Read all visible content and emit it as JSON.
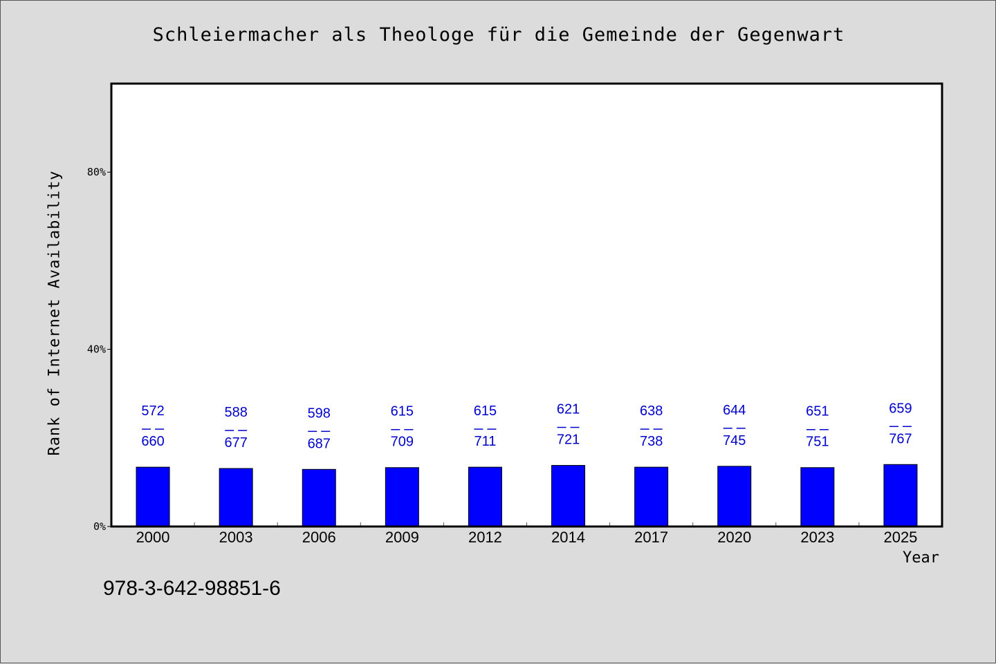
{
  "chart_data": {
    "type": "bar",
    "title": "Schleiermacher als Theologe für die Gemeinde der Gegenwart",
    "xlabel": "Year",
    "ylabel": "Rank of Internet Availability",
    "categories": [
      "2000",
      "2003",
      "2006",
      "2009",
      "2012",
      "2014",
      "2017",
      "2020",
      "2023",
      "2025"
    ],
    "values": [
      13.4,
      13.1,
      12.9,
      13.3,
      13.4,
      13.8,
      13.4,
      13.6,
      13.3,
      14.0
    ],
    "value_unit": "%",
    "range_labels": [
      {
        "low": "572",
        "high": "660"
      },
      {
        "low": "588",
        "high": "677"
      },
      {
        "low": "598",
        "high": "687"
      },
      {
        "low": "615",
        "high": "709"
      },
      {
        "low": "615",
        "high": "711"
      },
      {
        "low": "621",
        "high": "721"
      },
      {
        "low": "638",
        "high": "738"
      },
      {
        "low": "644",
        "high": "745"
      },
      {
        "low": "651",
        "high": "751"
      },
      {
        "low": "659",
        "high": "767"
      }
    ],
    "ylim": [
      0,
      100
    ],
    "yticks": [
      0,
      40,
      80
    ],
    "ytick_labels": [
      "0%",
      "40%",
      "80%"
    ],
    "grid": false,
    "legend": "none",
    "colors": {
      "bar": "#0000ff",
      "label": "#0000cc",
      "background": "#dcdcdc",
      "plot_background": "#ffffff"
    }
  },
  "footer": {
    "isbn": "978-3-642-98851-6"
  }
}
